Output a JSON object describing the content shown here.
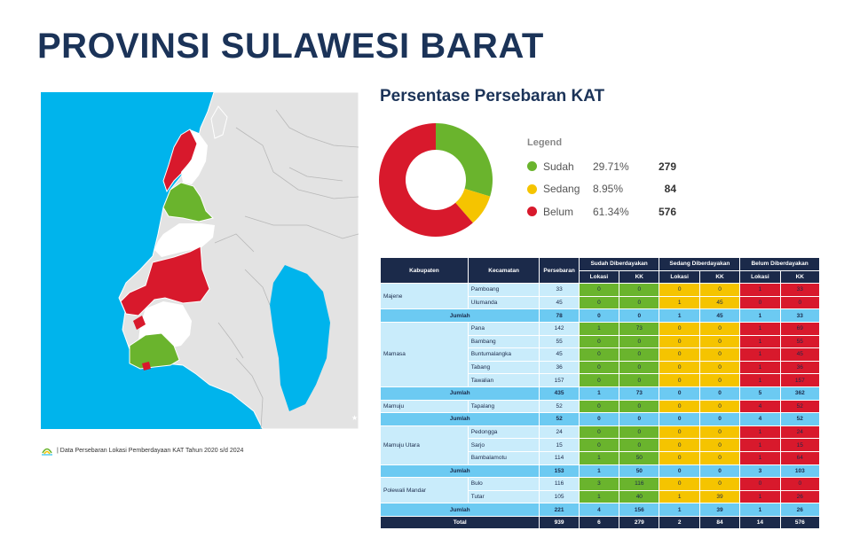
{
  "title": "PROVINSI SULAWESI BARAT",
  "source_note": "| Data Persebaran Lokasi Pemberdayaan KAT Tahun 2020 s/d 2024",
  "chart_title": "Persentase Persebaran KAT",
  "legend_title": "Legend",
  "chart_data": {
    "type": "pie",
    "title": "Persentase Persebaran KAT",
    "categories": [
      "Sudah",
      "Sedang",
      "Belum"
    ],
    "values": [
      29.71,
      8.95,
      61.34
    ],
    "percent_labels": [
      "29.71%",
      "8.95%",
      "61.34%"
    ],
    "kk": [
      279,
      84,
      576
    ],
    "colors": [
      "#6ab42d",
      "#f5c400",
      "#d8192c"
    ],
    "legend_position": "right"
  },
  "table": {
    "headers": {
      "kabupaten": "Kabupaten",
      "kecamatan": "Kecamatan",
      "persebaran": "Persebaran",
      "sudah": "Sudah Diberdayakan",
      "sedang": "Sedang Diberdayakan",
      "belum": "Belum Diberdayakan",
      "lokasi": "Lokasi",
      "kk": "KK"
    },
    "groups": [
      {
        "kabupaten": "Majene",
        "rows": [
          {
            "kec": "Pamboang",
            "p": "33",
            "v": [
              "0",
              "0",
              "0",
              "0",
              "1",
              "33"
            ]
          },
          {
            "kec": "Ulumanda",
            "p": "45",
            "v": [
              "0",
              "0",
              "1",
              "45",
              "0",
              "0"
            ]
          }
        ],
        "jumlah": {
          "label": "Jumlah",
          "p": "78",
          "v": [
            "0",
            "0",
            "1",
            "45",
            "1",
            "33"
          ]
        }
      },
      {
        "kabupaten": "Mamasa",
        "rows": [
          {
            "kec": "Pana",
            "p": "142",
            "v": [
              "1",
              "73",
              "0",
              "0",
              "1",
              "69"
            ]
          },
          {
            "kec": "Bambang",
            "p": "55",
            "v": [
              "0",
              "0",
              "0",
              "0",
              "1",
              "55"
            ]
          },
          {
            "kec": "Buntumalangka",
            "p": "45",
            "v": [
              "0",
              "0",
              "0",
              "0",
              "1",
              "45"
            ]
          },
          {
            "kec": "Tabang",
            "p": "36",
            "v": [
              "0",
              "0",
              "0",
              "0",
              "1",
              "36"
            ]
          },
          {
            "kec": "Tawalian",
            "p": "157",
            "v": [
              "0",
              "0",
              "0",
              "0",
              "1",
              "157"
            ]
          }
        ],
        "jumlah": {
          "label": "Jumlah",
          "p": "435",
          "v": [
            "1",
            "73",
            "0",
            "0",
            "5",
            "362"
          ]
        }
      },
      {
        "kabupaten": "Mamuju",
        "rows": [
          {
            "kec": "Tapalang",
            "p": "52",
            "v": [
              "0",
              "0",
              "0",
              "0",
              "4",
              "52"
            ]
          }
        ],
        "jumlah": {
          "label": "Jumlah",
          "p": "52",
          "v": [
            "0",
            "0",
            "0",
            "0",
            "4",
            "52"
          ]
        }
      },
      {
        "kabupaten": "Mamuju Utara",
        "rows": [
          {
            "kec": "Pedongga",
            "p": "24",
            "v": [
              "0",
              "0",
              "0",
              "0",
              "1",
              "24"
            ]
          },
          {
            "kec": "Sarjo",
            "p": "15",
            "v": [
              "0",
              "0",
              "0",
              "0",
              "1",
              "15"
            ]
          },
          {
            "kec": "Bambalamotu",
            "p": "114",
            "v": [
              "1",
              "50",
              "0",
              "0",
              "1",
              "64"
            ]
          }
        ],
        "jumlah": {
          "label": "Jumlah",
          "p": "153",
          "v": [
            "1",
            "50",
            "0",
            "0",
            "3",
            "103"
          ]
        }
      },
      {
        "kabupaten": "Polewali Mandar",
        "rows": [
          {
            "kec": "Bulo",
            "p": "116",
            "v": [
              "3",
              "116",
              "0",
              "0",
              "0",
              "0"
            ]
          },
          {
            "kec": "Tutar",
            "p": "105",
            "v": [
              "1",
              "40",
              "1",
              "39",
              "1",
              "26"
            ]
          }
        ],
        "jumlah": {
          "label": "Jumlah",
          "p": "221",
          "v": [
            "4",
            "156",
            "1",
            "39",
            "1",
            "26"
          ]
        }
      }
    ],
    "total": {
      "label": "Total",
      "p": "939",
      "v": [
        "6",
        "279",
        "2",
        "84",
        "14",
        "576"
      ]
    }
  },
  "colors": {
    "sea": "#00b4ec",
    "land": "#e3e3e3",
    "sudah": "#6ab42d",
    "sedang": "#f5c400",
    "belum": "#d8192c",
    "header": "#1b2a4a",
    "row_light": "#c9ecfb",
    "row_sum": "#6ccaf2"
  }
}
